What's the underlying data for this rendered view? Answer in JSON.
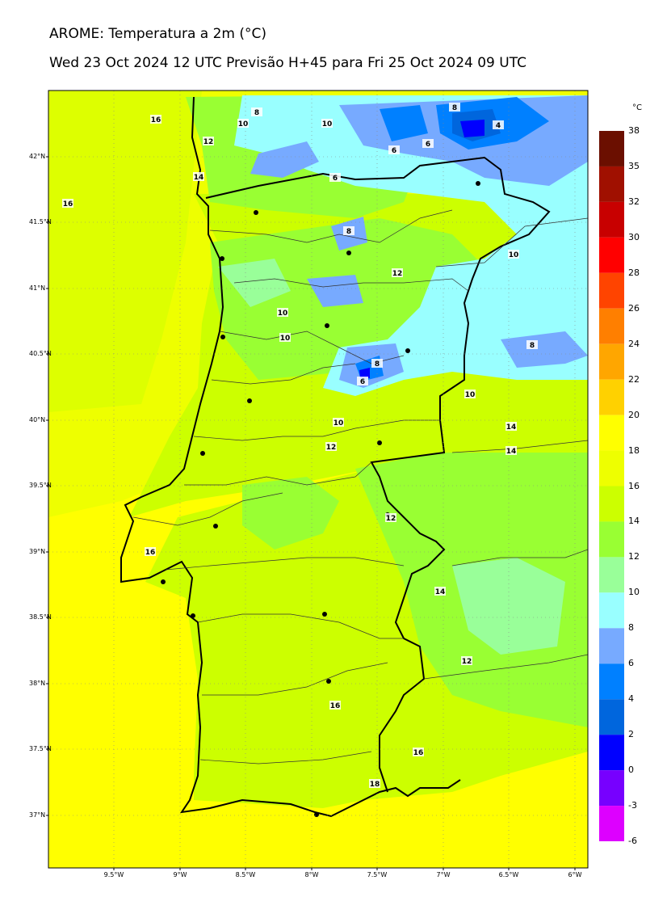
{
  "header": {
    "title": "AROME: Temperatura a 2m (°C)",
    "subtitle": "Wed 23 Oct 2024 12 UTC Previsão H+45 para Fri 25 Oct 2024 09 UTC"
  },
  "axes": {
    "lat_labels": [
      "42°N",
      "41.5°N",
      "41°N",
      "40.5°N",
      "40°N",
      "39.5°N",
      "39°N",
      "38.5°N",
      "38°N",
      "37.5°N",
      "37°N"
    ],
    "lon_labels": [
      "9.5°W",
      "9°W",
      "8.5°W",
      "8°W",
      "7.5°W",
      "7°W",
      "6.5°W",
      "6°W"
    ]
  },
  "colorbar": {
    "unit": "°C",
    "levels": [
      "38",
      "35",
      "32",
      "30",
      "28",
      "26",
      "24",
      "22",
      "20",
      "18",
      "16",
      "14",
      "12",
      "10",
      "8",
      "6",
      "4",
      "2",
      "0",
      "-3",
      "-6"
    ],
    "colors": [
      "#6b0f00",
      "#a01000",
      "#c80000",
      "#ff0000",
      "#ff4400",
      "#ff7f00",
      "#ffa600",
      "#ffd100",
      "#ffff00",
      "#eeff00",
      "#ccff00",
      "#99ff33",
      "#99ff99",
      "#99ffff",
      "#77aaff",
      "#0080ff",
      "#0066dd",
      "#0000ff",
      "#7700ff",
      "#dd00ff"
    ]
  },
  "contour_labels": [
    "16",
    "10",
    "8",
    "10",
    "8",
    "4",
    "12",
    "6",
    "6",
    "14",
    "6",
    "16",
    "8",
    "12",
    "10",
    "10",
    "10",
    "8",
    "6",
    "8",
    "10",
    "14",
    "10",
    "14",
    "12",
    "12",
    "16",
    "14",
    "12",
    "16",
    "16",
    "18"
  ]
}
